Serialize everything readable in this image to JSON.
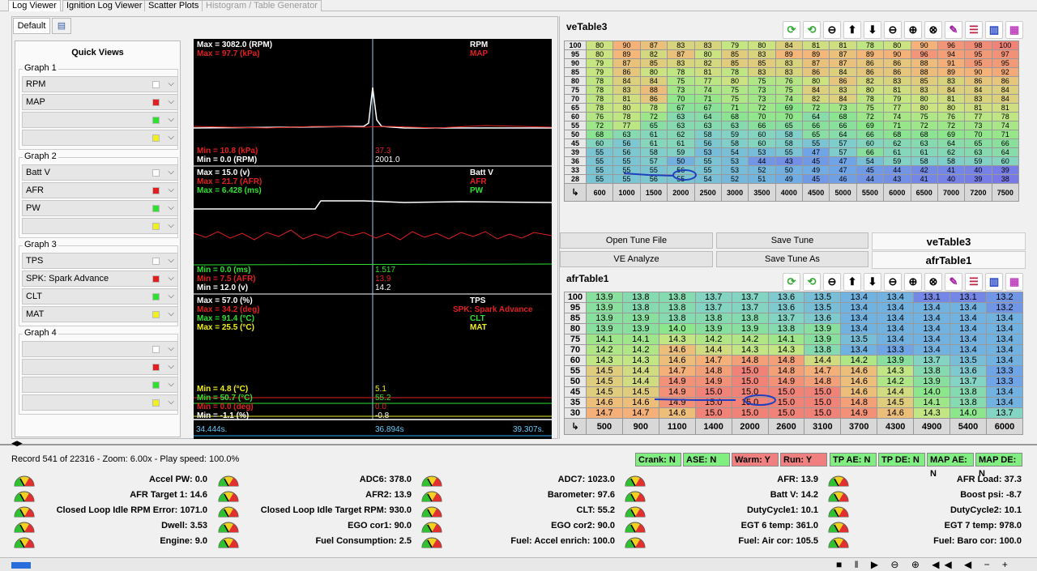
{
  "tabs": [
    "Log Viewer",
    "Ignition Log Viewer",
    "Scatter Plots",
    "Histogram / Table Generator"
  ],
  "subtab": "Default",
  "quick_views": {
    "title": "Quick Views",
    "groups": [
      {
        "label": "Graph 1",
        "items": [
          {
            "label": "RPM",
            "color": "#ffffff"
          },
          {
            "label": "MAP",
            "color": "#e02020"
          },
          {
            "label": "",
            "color": "#30e030"
          },
          {
            "label": "",
            "color": "#f0f020"
          }
        ]
      },
      {
        "label": "Graph 2",
        "items": [
          {
            "label": "Batt V",
            "color": "#ffffff"
          },
          {
            "label": "AFR",
            "color": "#e02020"
          },
          {
            "label": "PW",
            "color": "#30e030"
          },
          {
            "label": "",
            "color": "#f0f020"
          }
        ]
      },
      {
        "label": "Graph 3",
        "items": [
          {
            "label": "TPS",
            "color": "#ffffff"
          },
          {
            "label": "SPK: Spark Advance",
            "color": "#e02020"
          },
          {
            "label": "CLT",
            "color": "#30e030"
          },
          {
            "label": "MAT",
            "color": "#f0f020"
          }
        ]
      },
      {
        "label": "Graph 4",
        "items": [
          {
            "label": "",
            "color": "#ffffff"
          },
          {
            "label": "",
            "color": "#e02020"
          },
          {
            "label": "",
            "color": "#30e030"
          },
          {
            "label": "",
            "color": "#f0f020"
          }
        ]
      }
    ]
  },
  "plot": {
    "g1": {
      "max_rpm": "Max = 3082.0 (RPM)",
      "max_map": "Max = 97.7 (kPa)",
      "n1": "RPM",
      "n2": "MAP",
      "min_map": "Min = 10.8 (kPa)",
      "min_rpm": "Min = 0.0 (RPM)",
      "v1": "37.3",
      "v2": "2001.0"
    },
    "g2": {
      "l1": "Max = 15.0 (v)",
      "l2": "Max = 21.7 (AFR)",
      "l3": "Max = 6.428 (ms)",
      "n1": "Batt V",
      "n2": "AFR",
      "n3": "PW",
      "m1": "Min = 0.0 (ms)",
      "m2": "Min = 7.5 (AFR)",
      "m3": "Min = 12.0 (v)",
      "v1": "1.517",
      "v2": "13.9",
      "v3": "14.2"
    },
    "g3": {
      "l1": "Max = 57.0 (%)",
      "l2": "Max = 34.2 (deg)",
      "l3": "Max = 91.4 (°C)",
      "l4": "Max = 25.5 (°C)",
      "n1": "TPS",
      "n2": "SPK: Spark Advance",
      "n3": "CLT",
      "n4": "MAT",
      "m1": "Min = 4.8 (°C)",
      "m2": "Min = 50.7 (°C)",
      "m3": "Min = 0.0 (deg)",
      "m4": "Min = -1.1 (%)",
      "v1": "5.1",
      "v2": "55.2",
      "v3": "0.0",
      "v4": "-0.8"
    },
    "time": {
      "left": "34.444s.",
      "mid": "36.894s",
      "right": "39.307s."
    }
  },
  "ve": {
    "title": "veTable3",
    "rows": [
      "100",
      "95",
      "90",
      "85",
      "80",
      "75",
      "70",
      "65",
      "60",
      "55",
      "50",
      "45",
      "39",
      "36",
      "33",
      "28"
    ],
    "cols": [
      "600",
      "1000",
      "1500",
      "2000",
      "2500",
      "3000",
      "3500",
      "4000",
      "4500",
      "5000",
      "5500",
      "6000",
      "6500",
      "7000",
      "7200",
      "7500"
    ],
    "data": [
      [
        "80",
        "90",
        "87",
        "83",
        "83",
        "79",
        "80",
        "84",
        "81",
        "81",
        "78",
        "80",
        "90",
        "96",
        "98",
        "100"
      ],
      [
        "80",
        "89",
        "82",
        "87",
        "80",
        "85",
        "83",
        "89",
        "89",
        "87",
        "89",
        "90",
        "96",
        "94",
        "95",
        "97"
      ],
      [
        "79",
        "87",
        "85",
        "83",
        "82",
        "85",
        "85",
        "83",
        "87",
        "87",
        "86",
        "86",
        "88",
        "91",
        "95",
        "95"
      ],
      [
        "79",
        "86",
        "80",
        "78",
        "81",
        "78",
        "83",
        "83",
        "86",
        "84",
        "86",
        "86",
        "88",
        "89",
        "90",
        "92"
      ],
      [
        "78",
        "84",
        "84",
        "75",
        "77",
        "80",
        "75",
        "76",
        "80",
        "86",
        "82",
        "83",
        "85",
        "83",
        "86",
        "86"
      ],
      [
        "78",
        "83",
        "88",
        "73",
        "74",
        "75",
        "73",
        "75",
        "84",
        "83",
        "80",
        "81",
        "83",
        "84",
        "84",
        "84"
      ],
      [
        "78",
        "81",
        "86",
        "70",
        "71",
        "75",
        "73",
        "74",
        "82",
        "84",
        "78",
        "79",
        "80",
        "81",
        "83",
        "84"
      ],
      [
        "78",
        "80",
        "78",
        "67",
        "67",
        "71",
        "72",
        "69",
        "72",
        "73",
        "75",
        "77",
        "80",
        "80",
        "81",
        "81"
      ],
      [
        "76",
        "78",
        "72",
        "63",
        "64",
        "68",
        "70",
        "70",
        "64",
        "68",
        "72",
        "74",
        "75",
        "76",
        "77",
        "78"
      ],
      [
        "72",
        "77",
        "65",
        "63",
        "63",
        "63",
        "66",
        "65",
        "66",
        "66",
        "69",
        "71",
        "72",
        "72",
        "73",
        "74"
      ],
      [
        "68",
        "63",
        "61",
        "62",
        "58",
        "59",
        "60",
        "58",
        "65",
        "64",
        "66",
        "68",
        "68",
        "69",
        "70",
        "71"
      ],
      [
        "60",
        "56",
        "61",
        "61",
        "56",
        "58",
        "60",
        "58",
        "55",
        "57",
        "60",
        "62",
        "63",
        "64",
        "65",
        "66"
      ],
      [
        "55",
        "56",
        "58",
        "59",
        "53",
        "54",
        "53",
        "55",
        "47",
        "57",
        "66",
        "61",
        "61",
        "62",
        "63",
        "64"
      ],
      [
        "55",
        "55",
        "57",
        "50",
        "55",
        "53",
        "44",
        "43",
        "45",
        "47",
        "54",
        "59",
        "58",
        "58",
        "59",
        "60"
      ],
      [
        "55",
        "55",
        "55",
        "56",
        "55",
        "53",
        "52",
        "50",
        "49",
        "47",
        "45",
        "44",
        "42",
        "41",
        "40",
        "39"
      ],
      [
        "55",
        "55",
        "56",
        "55",
        "54",
        "52",
        "51",
        "49",
        "45",
        "46",
        "44",
        "43",
        "41",
        "40",
        "39",
        "38"
      ]
    ]
  },
  "buttons": {
    "open": "Open Tune File",
    "save": "Save Tune",
    "ve_an": "VE Analyze",
    "save_as": "Save Tune As"
  },
  "side_tabs": [
    "veTable3",
    "afrTable1"
  ],
  "afr": {
    "title": "afrTable1",
    "rows": [
      "100",
      "95",
      "85",
      "80",
      "75",
      "70",
      "60",
      "55",
      "50",
      "45",
      "35",
      "30"
    ],
    "cols": [
      "500",
      "900",
      "1100",
      "1400",
      "2000",
      "2600",
      "3100",
      "3700",
      "4300",
      "4900",
      "5400",
      "6000"
    ],
    "data": [
      [
        "13.9",
        "13.8",
        "13.8",
        "13.7",
        "13.7",
        "13.6",
        "13.5",
        "13.4",
        "13.4",
        "13.1",
        "13.1",
        "13.2"
      ],
      [
        "13.9",
        "13.8",
        "13.8",
        "13.7",
        "13.7",
        "13.6",
        "13.5",
        "13.4",
        "13.4",
        "13.4",
        "13.4",
        "13.2"
      ],
      [
        "13.9",
        "13.9",
        "13.8",
        "13.8",
        "13.8",
        "13.7",
        "13.6",
        "13.4",
        "13.4",
        "13.4",
        "13.4",
        "13.4"
      ],
      [
        "13.9",
        "13.9",
        "14.0",
        "13.9",
        "13.9",
        "13.8",
        "13.9",
        "13.4",
        "13.4",
        "13.4",
        "13.4",
        "13.4"
      ],
      [
        "14.1",
        "14.1",
        "14.3",
        "14.2",
        "14.2",
        "14.1",
        "13.9",
        "13.5",
        "13.4",
        "13.4",
        "13.4",
        "13.4"
      ],
      [
        "14.2",
        "14.2",
        "14.6",
        "14.4",
        "14.3",
        "14.3",
        "13.8",
        "13.4",
        "13.3",
        "13.4",
        "13.4",
        "13.4"
      ],
      [
        "14.3",
        "14.3",
        "14.6",
        "14.7",
        "14.8",
        "14.8",
        "14.4",
        "14.2",
        "13.9",
        "13.7",
        "13.5",
        "13.4"
      ],
      [
        "14.5",
        "14.4",
        "14.7",
        "14.8",
        "15.0",
        "14.8",
        "14.7",
        "14.6",
        "14.3",
        "13.8",
        "13.6",
        "13.3"
      ],
      [
        "14.5",
        "14.4",
        "14.9",
        "14.9",
        "15.0",
        "14.9",
        "14.8",
        "14.6",
        "14.2",
        "13.9",
        "13.7",
        "13.3"
      ],
      [
        "14.5",
        "14.5",
        "14.9",
        "15.0",
        "15.0",
        "15.0",
        "15.0",
        "14.6",
        "14.4",
        "14.0",
        "13.8",
        "13.4"
      ],
      [
        "14.6",
        "14.6",
        "14.9",
        "15.0",
        "15.0",
        "15.0",
        "15.0",
        "14.8",
        "14.5",
        "14.1",
        "13.8",
        "13.4"
      ],
      [
        "14.7",
        "14.7",
        "14.6",
        "15.0",
        "15.0",
        "15.0",
        "15.0",
        "14.9",
        "14.6",
        "14.3",
        "14.0",
        "13.7"
      ]
    ]
  },
  "status": {
    "record": "Record 541 of 22316 - Zoom: 6.00x - Play speed: 100.0%"
  },
  "flags": [
    {
      "label": "Crank: N",
      "color": "#80ee80"
    },
    {
      "label": "ASE: N",
      "color": "#80ee80"
    },
    {
      "label": "Warm: Y",
      "color": "#f08080"
    },
    {
      "label": "Run: Y",
      "color": "#f08080"
    },
    {
      "label": "TP AE: N",
      "color": "#80ee80"
    },
    {
      "label": "TP DE: N",
      "color": "#80ee80"
    },
    {
      "label": "MAP AE: N",
      "color": "#80ee80"
    },
    {
      "label": "MAP DE: N",
      "color": "#80ee80"
    }
  ],
  "gauges": [
    [
      "Accel PW: 0.0",
      "ADC6: 378.0",
      "ADC7: 1023.0",
      "AFR: 13.9",
      "AFR Load: 37.3"
    ],
    [
      "AFR Target 1: 14.6",
      "AFR2: 13.9",
      "Barometer: 97.6",
      "Batt V: 14.2",
      "Boost psi: -8.7"
    ],
    [
      "Closed Loop Idle RPM Error: 1071.0",
      "Closed Loop Idle Target RPM: 930.0",
      "CLT: 55.2",
      "DutyCycle1: 10.1",
      "DutyCycle2: 10.1"
    ],
    [
      "Dwell: 3.53",
      "EGO cor1: 90.0",
      "EGO cor2: 90.0",
      "EGT 6 temp: 361.0",
      "EGT 7 temp: 978.0"
    ],
    [
      "Engine: 9.0",
      "Fuel Consumption: 2.5",
      "Fuel: Accel enrich: 100.0",
      "Fuel: Air cor: 105.5",
      "Fuel: Baro cor: 100.0"
    ]
  ]
}
